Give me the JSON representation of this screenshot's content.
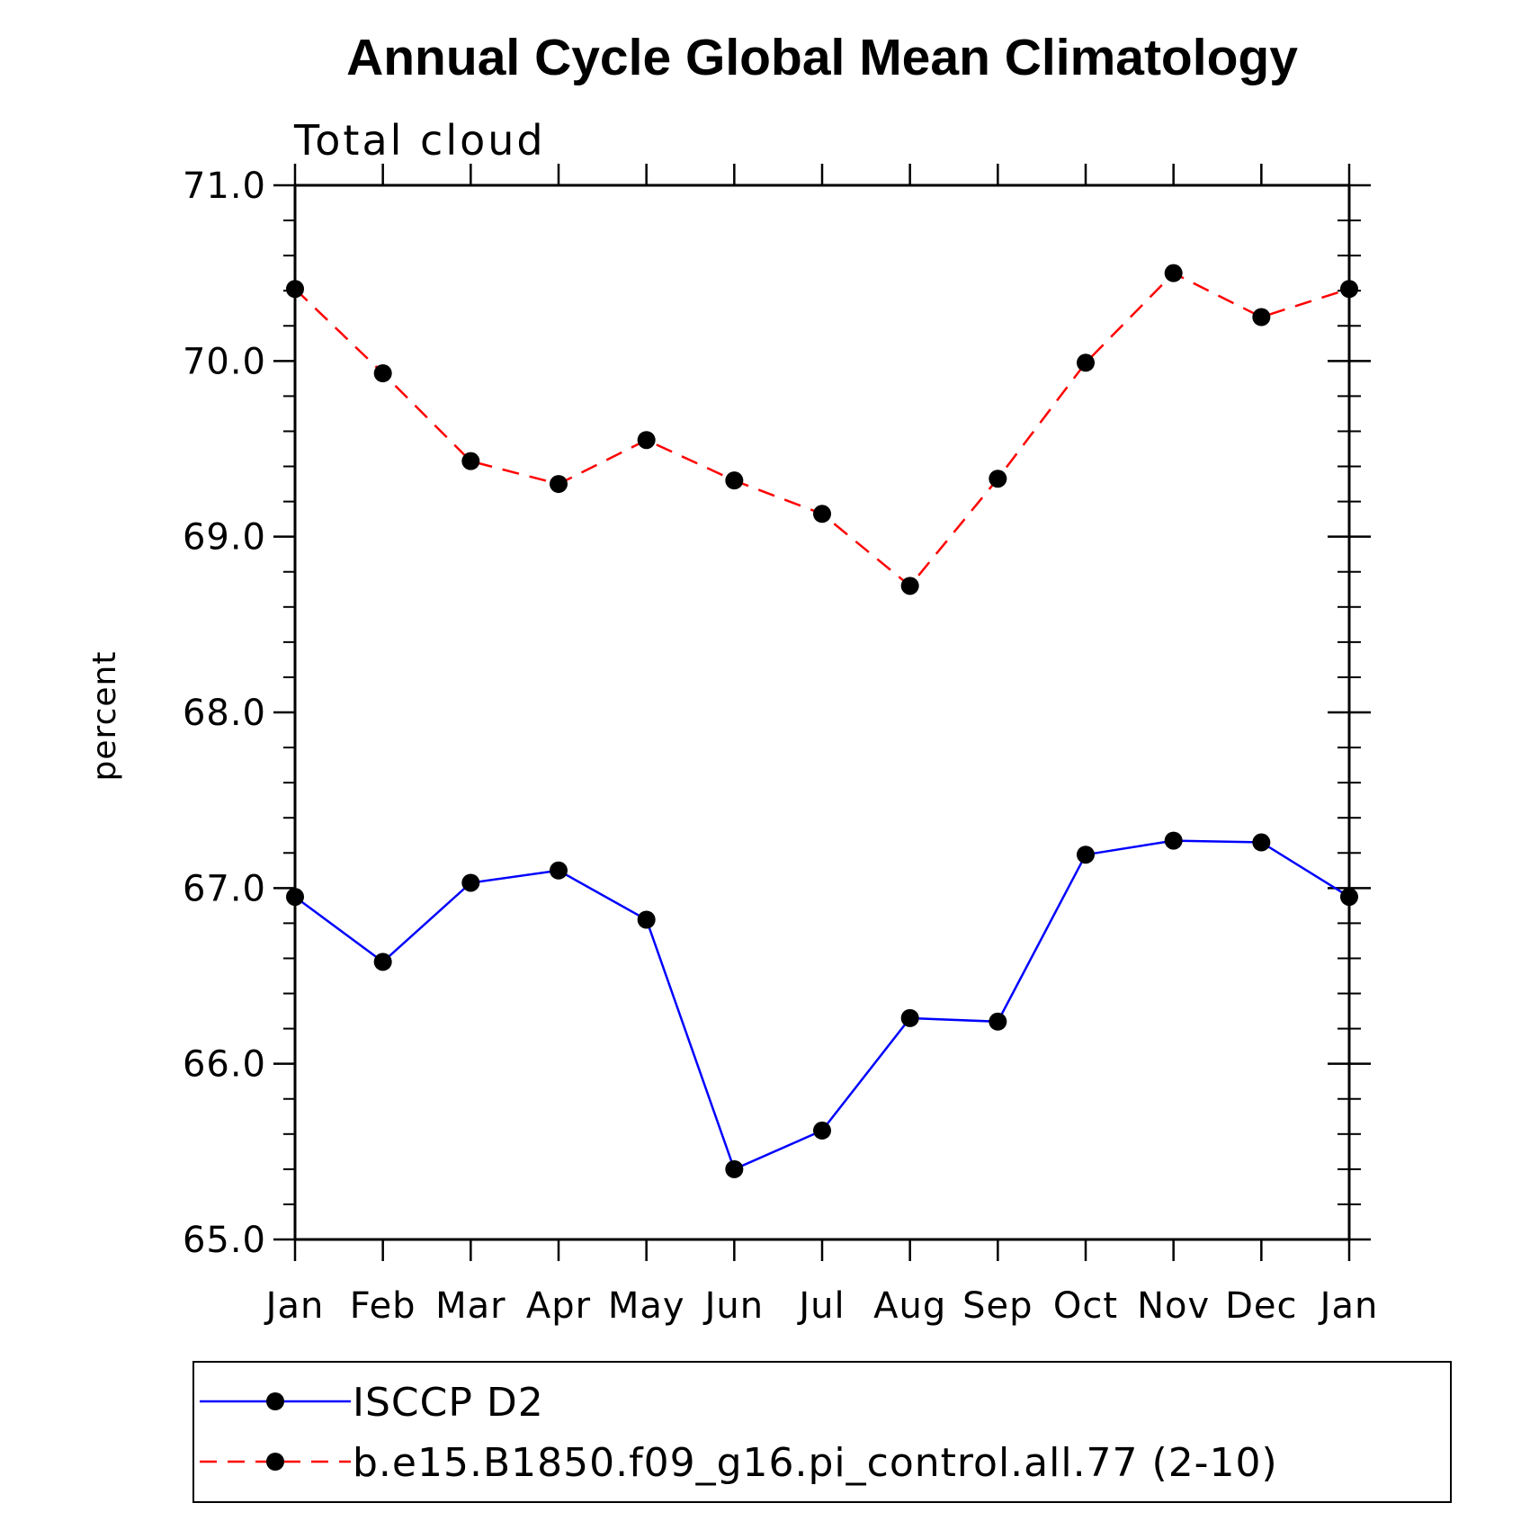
{
  "chart_data": {
    "type": "line",
    "title": "Annual Cycle Global Mean Climatology",
    "subtitle": "Total cloud",
    "xlabel": "",
    "ylabel": "percent",
    "categories": [
      "Jan",
      "Feb",
      "Mar",
      "Apr",
      "May",
      "Jun",
      "Jul",
      "Aug",
      "Sep",
      "Oct",
      "Nov",
      "Dec",
      "Jan"
    ],
    "ylim": [
      65.0,
      71.0
    ],
    "yticks": [
      "65.0",
      "66.0",
      "67.0",
      "68.0",
      "69.0",
      "70.0",
      "71.0"
    ],
    "grid": false,
    "legend_position": "bottom",
    "series": [
      {
        "name": "ISCCP D2",
        "color": "#0000ff",
        "line_style": "solid",
        "marker": "filled-circle",
        "values": [
          66.95,
          66.58,
          67.03,
          67.1,
          66.82,
          65.4,
          65.62,
          66.26,
          66.24,
          67.19,
          67.27,
          67.26,
          66.95
        ]
      },
      {
        "name": "b.e15.B1850.f09_g16.pi_control.all.77 (2-10)",
        "color": "#ff0000",
        "line_style": "dashed",
        "marker": "filled-circle",
        "values": [
          70.41,
          69.93,
          69.43,
          69.3,
          69.55,
          69.32,
          69.13,
          68.72,
          69.33,
          69.99,
          70.5,
          70.25,
          70.41
        ]
      }
    ]
  }
}
